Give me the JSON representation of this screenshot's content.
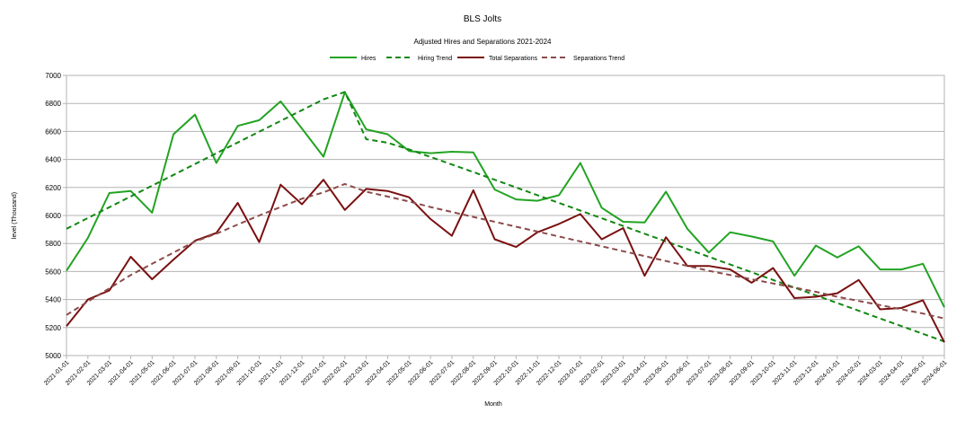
{
  "chart_data": {
    "type": "line",
    "title": "BLS Jolts",
    "subtitle": "Adjusted Hires and Separations 2021-2024",
    "xlabel": "Month",
    "ylabel": "level (Thousand)",
    "ylim": [
      5000,
      7000
    ],
    "yticks": [
      5000,
      5200,
      5400,
      5600,
      5800,
      6000,
      6200,
      6400,
      6600,
      6800,
      7000
    ],
    "grid": true,
    "legend_position": "top",
    "x": [
      "2021-01-01",
      "2021-02-01",
      "2021-03-01",
      "2021-04-01",
      "2021-05-01",
      "2021-06-01",
      "2021-07-01",
      "2021-08-01",
      "2021-09-01",
      "2021-10-01",
      "2021-11-01",
      "2021-12-01",
      "2022-01-01",
      "2022-02-01",
      "2022-03-01",
      "2022-04-01",
      "2022-05-01",
      "2022-06-01",
      "2022-07-01",
      "2022-08-01",
      "2022-09-01",
      "2022-10-01",
      "2022-11-01",
      "2022-12-01",
      "2023-01-01",
      "2023-02-01",
      "2023-03-01",
      "2023-04-01",
      "2023-05-01",
      "2023-06-01",
      "2023-07-01",
      "2023-08-01",
      "2023-09-01",
      "2023-10-01",
      "2023-11-01",
      "2023-12-01",
      "2024-01-01",
      "2024-02-01",
      "2024-03-01",
      "2024-04-01",
      "2024-05-01",
      "2024-06-01"
    ],
    "series": [
      {
        "name": "Hires",
        "color": "#22a322",
        "dash": "solid",
        "values": [
          5605,
          5840,
          6160,
          6175,
          6020,
          6580,
          6720,
          6375,
          6640,
          6680,
          6815,
          6620,
          6420,
          6880,
          6615,
          6580,
          6460,
          6445,
          6455,
          6450,
          6185,
          6115,
          6105,
          6145,
          6375,
          6055,
          5955,
          5950,
          6170,
          5905,
          5735,
          5880,
          5850,
          5815,
          5570,
          5785,
          5700,
          5780,
          5615,
          5615,
          5655,
          5345
        ]
      },
      {
        "name": "Hiring Trend",
        "color": "#118811",
        "dash": "dashed",
        "values": [
          5905,
          5982,
          6059,
          6136,
          6213,
          6290,
          6367,
          6444,
          6521,
          6598,
          6675,
          6752,
          6829,
          6882,
          6545,
          6519,
          6472,
          6418,
          6364,
          6310,
          6255,
          6200,
          6145,
          6090,
          6035,
          5980,
          5925,
          5870,
          5815,
          5760,
          5705,
          5650,
          5595,
          5540,
          5485,
          5430,
          5375,
          5320,
          5265,
          5210,
          5155,
          5100
        ]
      },
      {
        "name": "Total Separations",
        "color": "#7a1010",
        "dash": "solid",
        "values": [
          5210,
          5400,
          5465,
          5705,
          5545,
          5685,
          5820,
          5875,
          6090,
          5810,
          6220,
          6080,
          6255,
          6040,
          6190,
          6175,
          6130,
          5975,
          5855,
          6180,
          5830,
          5775,
          5880,
          5940,
          6010,
          5830,
          5910,
          5570,
          5845,
          5640,
          5640,
          5615,
          5520,
          5625,
          5410,
          5420,
          5445,
          5540,
          5330,
          5340,
          5395,
          5095
        ]
      },
      {
        "name": "Separations Trend",
        "color": "#8c4a4a",
        "dash": "dashed",
        "values": [
          5290,
          5385,
          5480,
          5575,
          5655,
          5735,
          5815,
          5870,
          5935,
          6000,
          6060,
          6120,
          6165,
          6225,
          6170,
          6135,
          6100,
          6060,
          6025,
          5990,
          5955,
          5920,
          5885,
          5850,
          5815,
          5780,
          5745,
          5710,
          5675,
          5640,
          5605,
          5575,
          5545,
          5515,
          5485,
          5455,
          5420,
          5390,
          5360,
          5330,
          5300,
          5265
        ]
      }
    ]
  }
}
